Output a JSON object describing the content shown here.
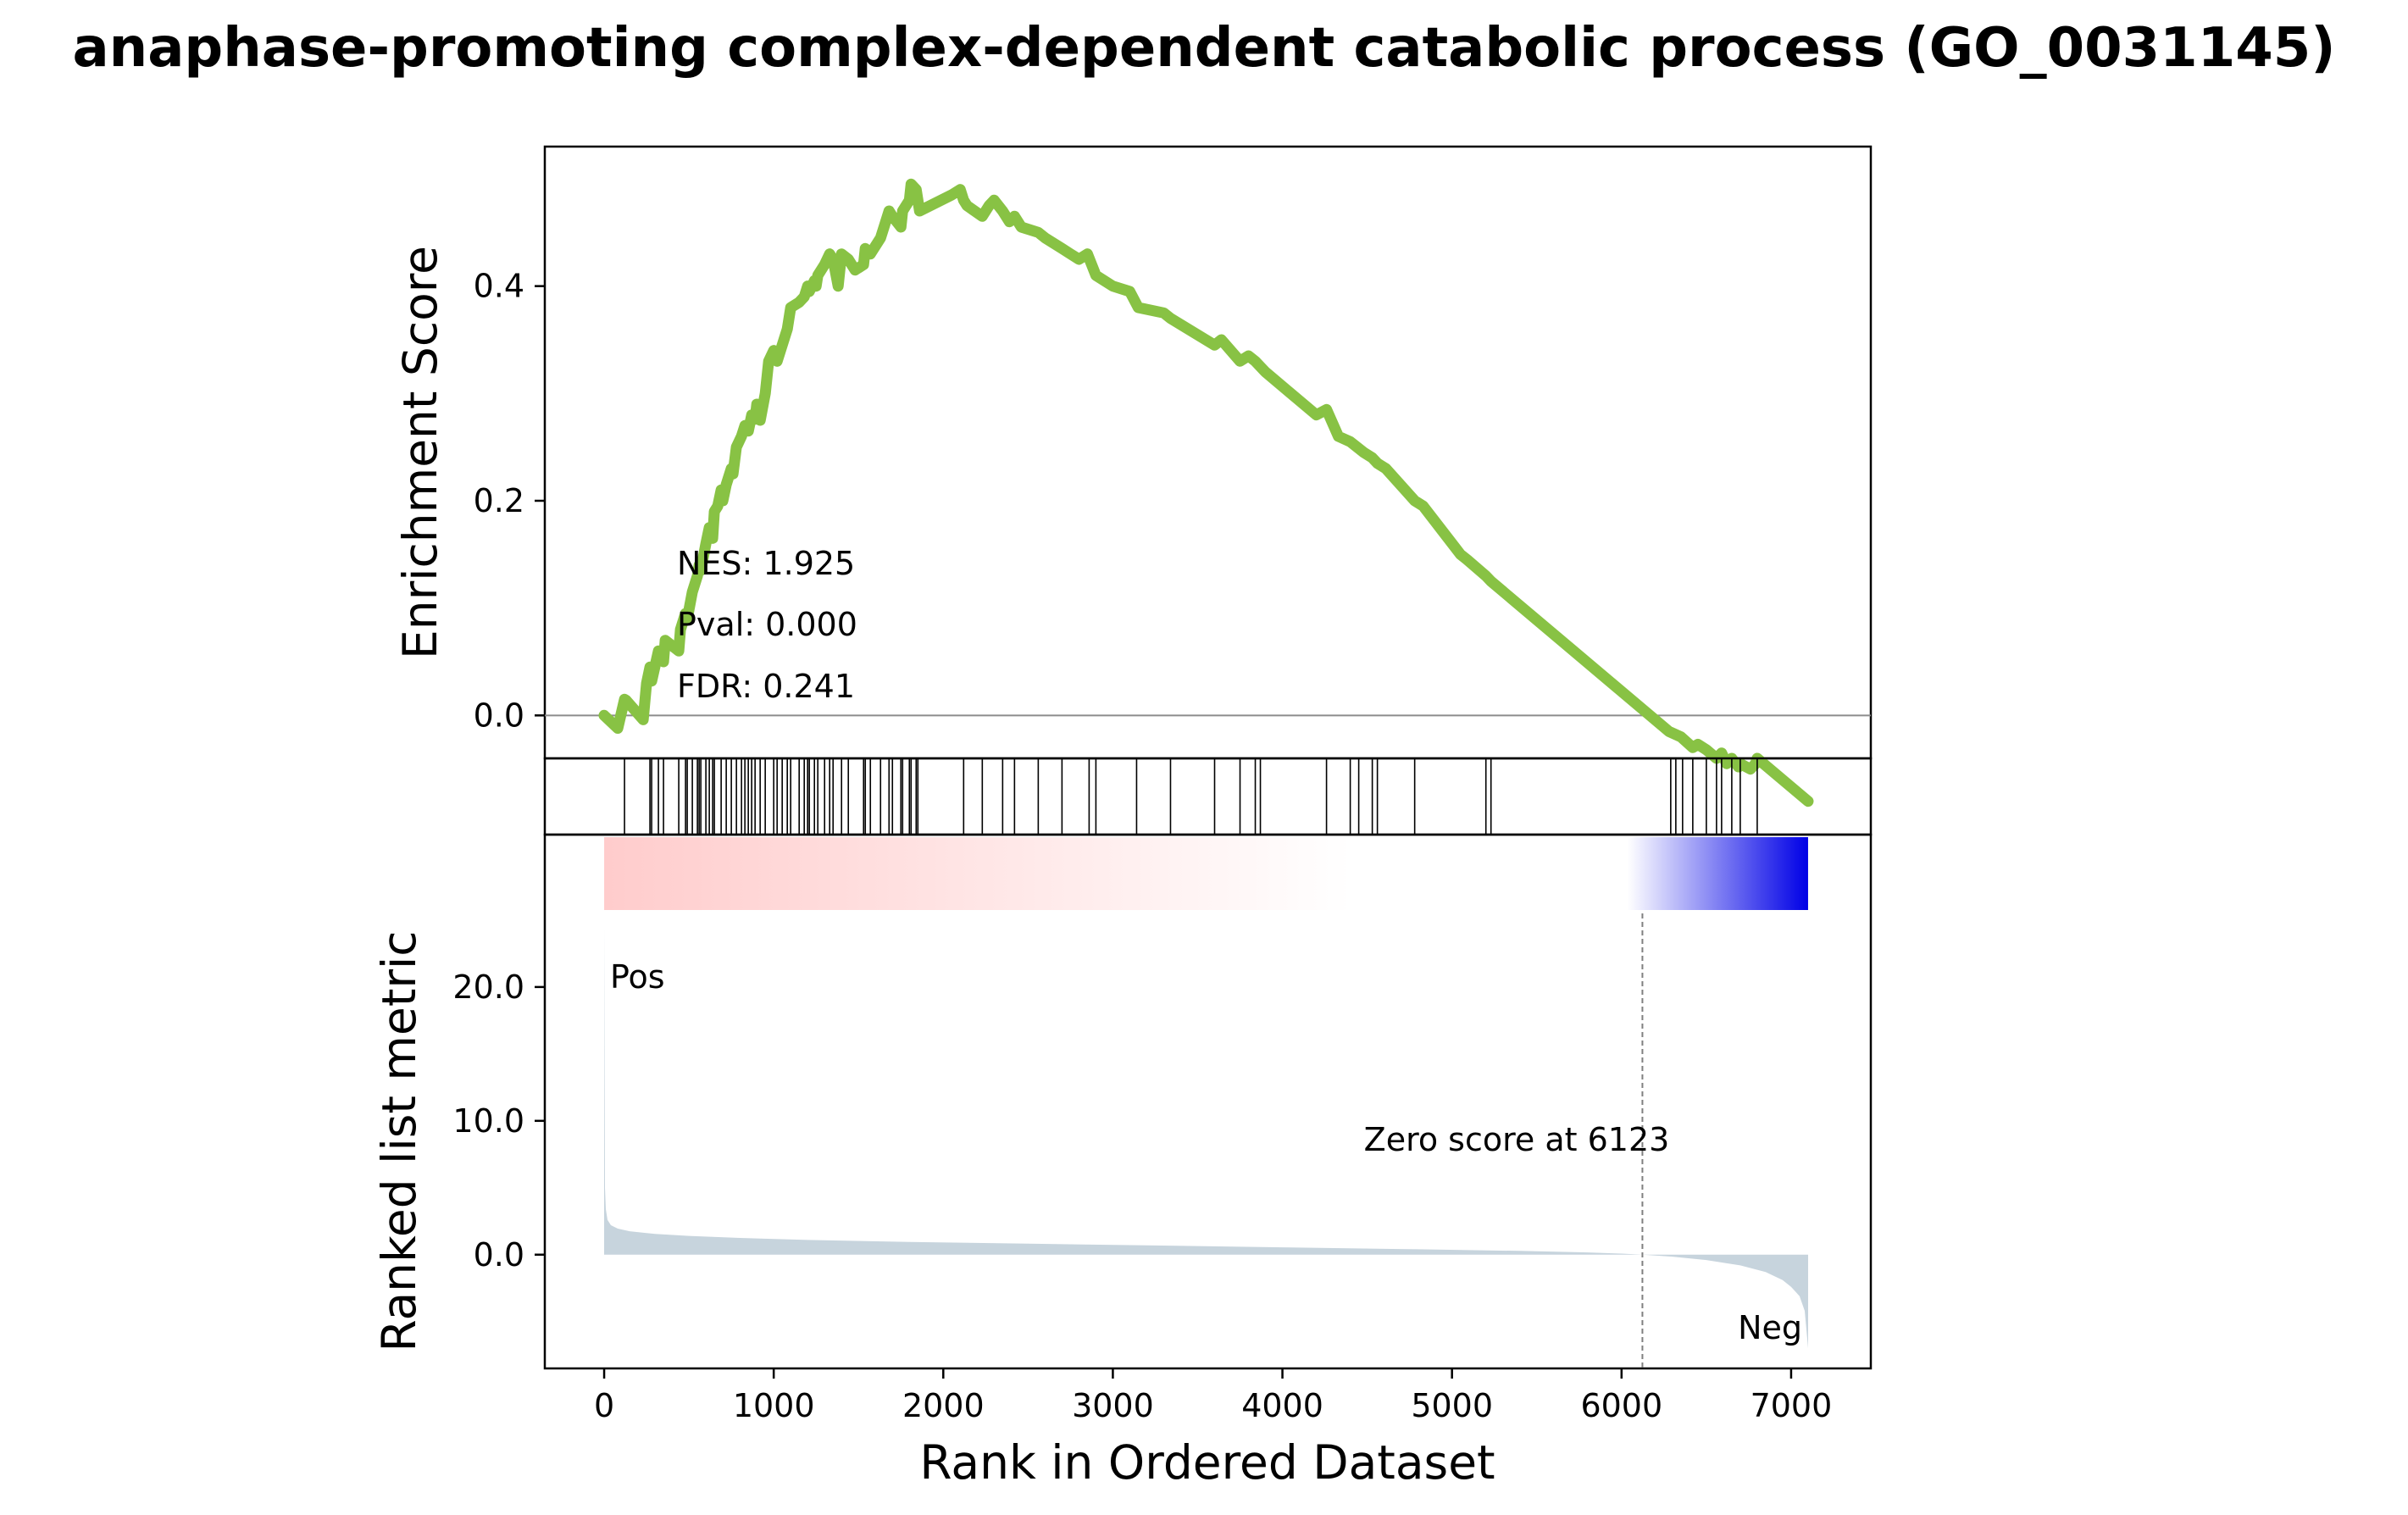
{
  "chart_data": {
    "type": "line",
    "title": "anaphase-promoting complex-dependent catabolic process (GO_0031145)",
    "xlabel": "Rank in Ordered Dataset",
    "xlim": [
      -350,
      7470
    ],
    "x_ticks": [
      0,
      1000,
      2000,
      3000,
      4000,
      5000,
      6000,
      7000
    ],
    "colors": {
      "es_line": "#88c244",
      "zero_line": "#8c8c8c",
      "hits": "#000000",
      "metric_fill": "#c7d4dd",
      "pos_color": "#e60000",
      "neg_color": "#0000e6",
      "ribbon_start": "#ffcccc",
      "ribbon_mid": "#ffffff",
      "ribbon_end": "#0000e6",
      "zero_vline": "#808080"
    },
    "enrichment_panel": {
      "ylabel": "Enrichment Score",
      "ylim": [
        -0.04,
        0.53
      ],
      "y_ticks": [
        "0.0",
        "0.2",
        "0.4"
      ],
      "y_tick_values": [
        0.0,
        0.2,
        0.4
      ],
      "annotations": [
        "NES: 1.925",
        "Pval: 0.000",
        "FDR: 0.241"
      ],
      "es_curve": {
        "x": [
          0,
          80,
          120,
          130,
          230,
          250,
          270,
          280,
          320,
          350,
          360,
          440,
          450,
          480,
          490,
          520,
          550,
          560,
          570,
          600,
          620,
          640,
          650,
          670,
          690,
          700,
          720,
          750,
          760,
          780,
          810,
          830,
          850,
          870,
          890,
          900,
          920,
          950,
          970,
          1000,
          1020,
          1050,
          1080,
          1100,
          1150,
          1180,
          1200,
          1210,
          1240,
          1250,
          1260,
          1300,
          1330,
          1350,
          1380,
          1400,
          1440,
          1480,
          1530,
          1540,
          1570,
          1630,
          1680,
          1700,
          1750,
          1760,
          1800,
          1810,
          1840,
          1850,
          1860,
          2050,
          2100,
          2120,
          2140,
          2230,
          2270,
          2300,
          2350,
          2390,
          2420,
          2460,
          2560,
          2600,
          2650,
          2700,
          2750,
          2800,
          2850,
          2900,
          3000,
          3100,
          3150,
          3300,
          3340,
          3600,
          3640,
          3750,
          3800,
          3840,
          3870,
          3900,
          4200,
          4260,
          4330,
          4400,
          4480,
          4530,
          4560,
          4610,
          4780,
          4830,
          5050,
          5090,
          5200,
          5230,
          6280,
          6350,
          6420,
          6450,
          6500,
          6560,
          6590,
          6620,
          6650,
          6690,
          6700,
          6760,
          6790,
          6800,
          7100
        ],
        "y": [
          0.0,
          -0.012,
          0.015,
          0.014,
          -0.004,
          0.03,
          0.045,
          0.032,
          0.06,
          0.05,
          0.07,
          0.06,
          0.08,
          0.095,
          0.09,
          0.115,
          0.13,
          0.14,
          0.135,
          0.16,
          0.175,
          0.165,
          0.19,
          0.195,
          0.21,
          0.2,
          0.215,
          0.23,
          0.225,
          0.25,
          0.26,
          0.27,
          0.265,
          0.28,
          0.276,
          0.29,
          0.275,
          0.3,
          0.33,
          0.34,
          0.33,
          0.345,
          0.36,
          0.38,
          0.385,
          0.39,
          0.4,
          0.395,
          0.405,
          0.4,
          0.41,
          0.42,
          0.43,
          0.425,
          0.4,
          0.43,
          0.425,
          0.415,
          0.42,
          0.435,
          0.43,
          0.445,
          0.47,
          0.465,
          0.455,
          0.47,
          0.48,
          0.495,
          0.49,
          0.48,
          0.47,
          0.485,
          0.49,
          0.48,
          0.475,
          0.465,
          0.475,
          0.48,
          0.47,
          0.46,
          0.465,
          0.455,
          0.45,
          0.445,
          0.44,
          0.435,
          0.43,
          0.425,
          0.43,
          0.41,
          0.4,
          0.395,
          0.38,
          0.375,
          0.37,
          0.345,
          0.35,
          0.33,
          0.335,
          0.33,
          0.325,
          0.32,
          0.28,
          0.285,
          0.26,
          0.255,
          0.245,
          0.24,
          0.235,
          0.23,
          0.2,
          0.195,
          0.15,
          0.145,
          0.13,
          0.125,
          -0.015,
          -0.02,
          -0.03,
          -0.027,
          -0.032,
          -0.04,
          -0.035,
          -0.045,
          -0.04,
          -0.048,
          -0.045,
          -0.05,
          -0.045,
          -0.04,
          -0.08
        ]
      }
    },
    "hits_panel": {
      "hit_ranks": [
        120,
        270,
        280,
        320,
        350,
        440,
        480,
        490,
        520,
        550,
        560,
        570,
        600,
        620,
        640,
        650,
        690,
        720,
        750,
        780,
        810,
        830,
        850,
        870,
        890,
        920,
        950,
        1000,
        1020,
        1050,
        1080,
        1100,
        1150,
        1180,
        1200,
        1210,
        1240,
        1260,
        1300,
        1330,
        1350,
        1400,
        1440,
        1530,
        1540,
        1570,
        1630,
        1680,
        1700,
        1750,
        1760,
        1800,
        1810,
        1840,
        1850,
        2120,
        2230,
        2350,
        2420,
        2560,
        2700,
        2860,
        2900,
        3140,
        3340,
        3600,
        3750,
        3840,
        3870,
        4260,
        4400,
        4450,
        4530,
        4560,
        4780,
        5200,
        5230,
        6290,
        6320,
        6360,
        6420,
        6500,
        6560,
        6590,
        6650,
        6700,
        6800
      ]
    },
    "ranked_metric_panel": {
      "ylabel": "Ranked list metric",
      "ylim": [
        -8.5,
        25.5
      ],
      "y_ticks": [
        "0.0",
        "10.0",
        "20.0"
      ],
      "y_tick_values": [
        0,
        10,
        20
      ],
      "pos_label": "Pos",
      "neg_label": "Neg",
      "zero_score_label": "Zero score at 6123",
      "zero_score_rank": 6123,
      "metric_curve": {
        "x": [
          0,
          5,
          10,
          20,
          40,
          80,
          150,
          300,
          500,
          800,
          1200,
          1800,
          2500,
          3200,
          4000,
          4800,
          5400,
          5800,
          6000,
          6123,
          6300,
          6500,
          6700,
          6850,
          6950,
          7000,
          7050,
          7080,
          7100
        ],
        "y": [
          24.5,
          5.0,
          3.4,
          2.6,
          2.2,
          1.95,
          1.75,
          1.55,
          1.4,
          1.25,
          1.1,
          0.95,
          0.82,
          0.7,
          0.55,
          0.4,
          0.28,
          0.17,
          0.08,
          0.0,
          -0.15,
          -0.4,
          -0.8,
          -1.3,
          -1.9,
          -2.4,
          -3.1,
          -4.2,
          -7.0
        ]
      }
    }
  }
}
